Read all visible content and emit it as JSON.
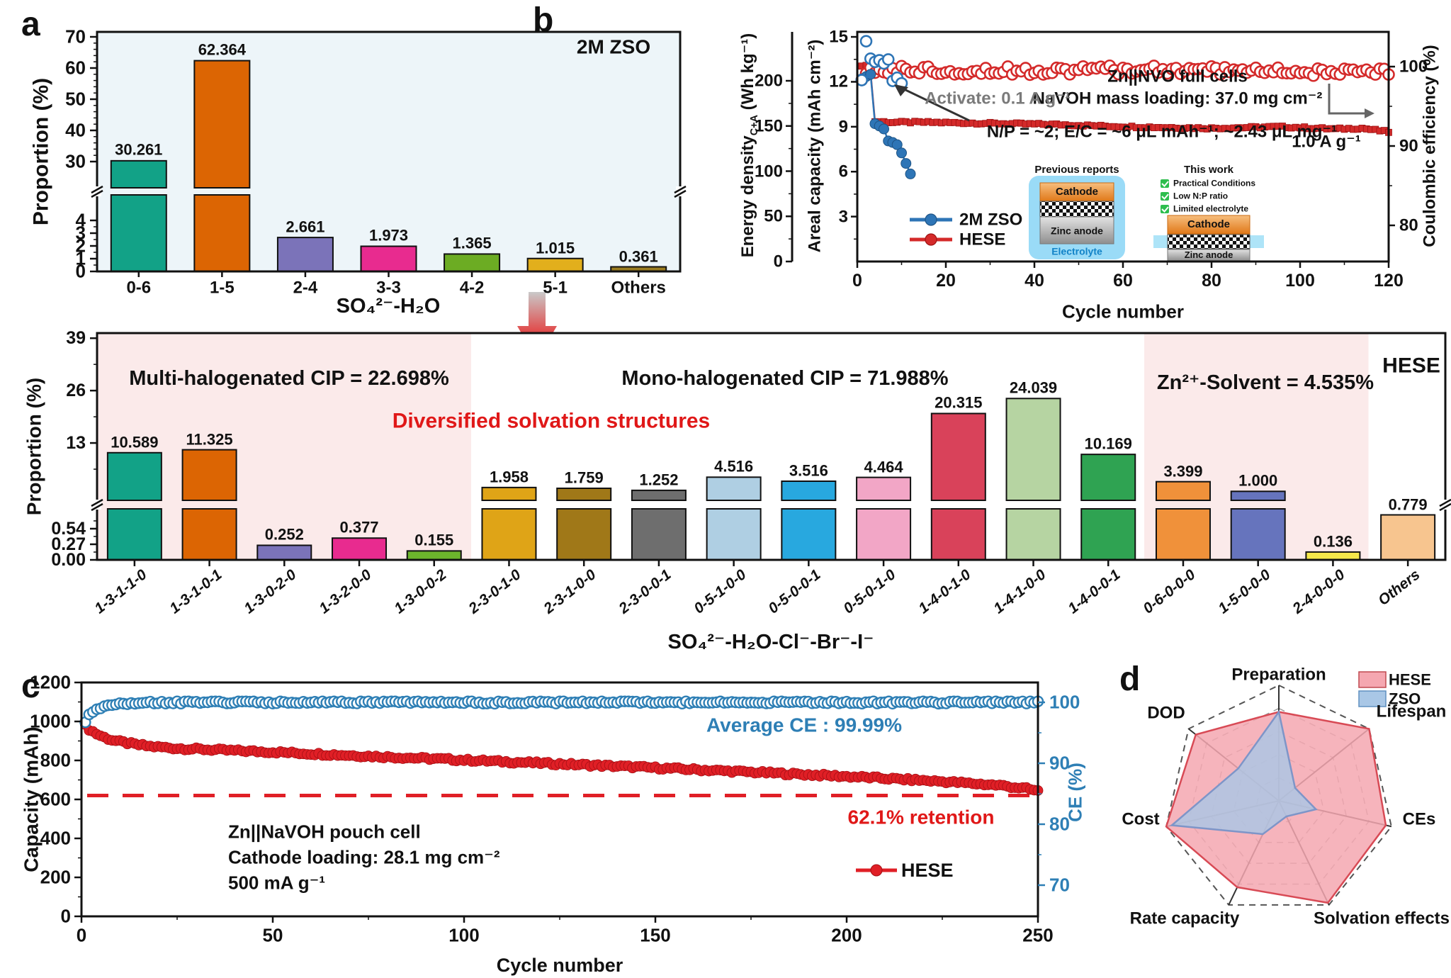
{
  "colors": {
    "accent_red": "#D42A2A",
    "accent_blue": "#2E75B6",
    "panel_a_bg": "#EDF5F9",
    "pink_region": "#FBEAEA",
    "retention_red": "#E01F26",
    "ce_blue": "#2E7FB5",
    "radar_hese_fill": "#F5A7B0",
    "radar_zso_fill": "#A9C7E6"
  },
  "chart_data": [
    {
      "id": "a",
      "type": "bar",
      "panel_label": "a",
      "title": "2M ZSO",
      "xlabel": "SO₄²⁻-H₂O",
      "ylabel": "Proportion (%)",
      "categories": [
        "0-6",
        "1-5",
        "2-4",
        "3-3",
        "4-2",
        "5-1",
        "Others"
      ],
      "values": [
        30.261,
        62.364,
        2.661,
        1.973,
        1.365,
        1.015,
        0.361
      ],
      "value_labels": [
        "30.261",
        "62.364",
        "2.661",
        "1.973",
        "1.365",
        "1.015",
        "0.361"
      ],
      "bar_colors": [
        "#12A287",
        "#DC6503",
        "#7B73B9",
        "#E82B8F",
        "#6CAC23",
        "#E2AF1C",
        "#9A7C20"
      ],
      "axis_break": true,
      "lower_ticks": [
        "0",
        "1",
        "2",
        "3",
        "4"
      ],
      "upper_ticks": [
        "30",
        "40",
        "50",
        "60",
        "70"
      ],
      "ylim_lower": [
        0,
        4.6
      ],
      "ylim_upper": [
        22,
        70
      ],
      "plot_bg": "#EDF5F9"
    },
    {
      "id": "b",
      "type": "line",
      "panel_label": "b",
      "xlabel": "Cycle number",
      "ylabel_energy_prefix": "Energy density",
      "ylabel_energy_sub": "C+A",
      "ylabel_energy_suffix": " (Wh kg⁻¹)",
      "ylabel_capacity": "Areal capacity (mAh cm⁻²)",
      "ylabel_ce": "Coulombic efficiency (%)",
      "x_ticks": [
        "0",
        "20",
        "40",
        "60",
        "80",
        "100",
        "120"
      ],
      "energy_ticks": [
        "0",
        "50",
        "100",
        "150",
        "200"
      ],
      "capacity_ticks": [
        "3",
        "6",
        "9",
        "12",
        "15"
      ],
      "ce_ticks": [
        "80",
        "90",
        "100"
      ],
      "x_range": [
        0,
        120
      ],
      "capacity_range": [
        0,
        15
      ],
      "energy_range": [
        0,
        200
      ],
      "ce_range": [
        80,
        100
      ],
      "annotations": {
        "cells": "Zn||NVO full cells",
        "loading": "NaVOH mass loading: 37.0 mg cm⁻²",
        "activate": "Activate: 0.1 A g⁻¹",
        "np": "N/P = ~2;  E/C = ~6 μL mAh⁻¹; ~2.43 μL mg⁻¹",
        "rate": "1.0 A g⁻¹"
      },
      "legend": [
        {
          "label": "2M ZSO",
          "color": "#2E75B6"
        },
        {
          "label": "HESE",
          "color": "#D42A2A"
        }
      ],
      "inset": {
        "previous_title": "Previous reports",
        "previous_cathode": "Cathode",
        "previous_anode": "Zinc anode",
        "previous_electrolyte": "Electrolyte",
        "thiswork_title": "This work",
        "checks": [
          "Practical Conditions",
          "Low N:P ratio",
          "Limited electrolyte"
        ],
        "thiswork_cathode": "Cathode",
        "thiswork_anode": "Zinc anode"
      },
      "series": [
        {
          "name": "HESE areal capacity",
          "marker": "square-filled",
          "color": "#D42A2A",
          "dense": true,
          "jitter": 0.06,
          "points": [
            [
              1,
              13.0
            ],
            [
              2,
              13.15
            ],
            [
              3,
              12.6
            ],
            [
              4,
              9.35
            ],
            [
              8,
              9.3
            ],
            [
              15,
              9.3
            ],
            [
              25,
              9.25
            ],
            [
              35,
              9.2
            ],
            [
              45,
              9.15
            ],
            [
              55,
              9.05
            ],
            [
              62,
              9.0
            ],
            [
              70,
              8.95
            ],
            [
              80,
              8.9
            ],
            [
              88,
              8.95
            ],
            [
              95,
              9.0
            ],
            [
              100,
              8.95
            ],
            [
              108,
              8.85
            ],
            [
              114,
              8.9
            ],
            [
              120,
              8.65
            ]
          ]
        },
        {
          "name": "HESE CE",
          "marker": "circle-open",
          "color": "#D42A2A",
          "axis": "ce",
          "dense": true,
          "jitter": 0.55,
          "points": [
            [
              1,
              97.8
            ],
            [
              3,
              99.4
            ],
            [
              10,
              99.6
            ],
            [
              30,
              99.5
            ],
            [
              60,
              99.6
            ],
            [
              90,
              99.5
            ],
            [
              110,
              99.2
            ],
            [
              120,
              99.4
            ]
          ]
        },
        {
          "name": "2M ZSO areal capacity",
          "marker": "circle-filled",
          "color": "#2E75B6",
          "line": true,
          "points": [
            [
              1,
              12.2
            ],
            [
              2,
              12.35
            ],
            [
              3,
              12.5
            ],
            [
              4,
              9.2
            ],
            [
              5,
              9.05
            ],
            [
              6,
              8.85
            ],
            [
              7,
              8.05
            ],
            [
              8,
              7.95
            ],
            [
              9,
              7.8
            ],
            [
              10,
              7.25
            ],
            [
              11,
              6.55
            ],
            [
              12,
              5.85
            ]
          ]
        },
        {
          "name": "2M ZSO CE",
          "marker": "circle-open",
          "color": "#2E75B6",
          "axis": "ce",
          "points": [
            [
              1,
              98.3
            ],
            [
              2,
              103.2
            ],
            [
              3,
              101.0
            ],
            [
              4,
              100.6
            ],
            [
              5,
              100.8
            ],
            [
              6,
              100.4
            ],
            [
              7,
              100.9
            ],
            [
              8,
              98.2
            ],
            [
              9,
              98.6
            ],
            [
              10,
              97.9
            ]
          ]
        }
      ]
    },
    {
      "id": "hese",
      "type": "bar",
      "title": "HESE",
      "xlabel": "SO₄²⁻-H₂O-Cl⁻-Br⁻-I⁻",
      "ylabel": "Proportion (%)",
      "categories": [
        "1-3-1-1-0",
        "1-3-1-0-1",
        "1-3-0-2-0",
        "1-3-2-0-0",
        "1-3-0-0-2",
        "2-3-0-1-0",
        "2-3-1-0-0",
        "2-3-0-0-1",
        "0-5-1-0-0",
        "0-5-0-0-1",
        "0-5-0-1-0",
        "1-4-0-1-0",
        "1-4-1-0-0",
        "1-4-0-0-1",
        "0-6-0-0-0",
        "1-5-0-0-0",
        "2-4-0-0-0",
        "Others"
      ],
      "values": [
        10.589,
        11.325,
        0.252,
        0.377,
        0.155,
        1.958,
        1.759,
        1.252,
        4.516,
        3.516,
        4.464,
        20.315,
        24.039,
        10.169,
        3.399,
        1.0,
        0.136,
        0.779
      ],
      "value_labels": [
        "10.589",
        "11.325",
        "0.252",
        "0.377",
        "0.155",
        "1.958",
        "1.759",
        "1.252",
        "4.516",
        "3.516",
        "4.464",
        "20.315",
        "24.039",
        "10.169",
        "3.399",
        "1.000",
        "0.136",
        "0.779"
      ],
      "bar_colors": [
        "#12A287",
        "#DC6503",
        "#7B73B9",
        "#E82B8F",
        "#6CB52C",
        "#DFA417",
        "#A07818",
        "#6E6E6E",
        "#AFCFE3",
        "#28A8DF",
        "#F2A6C6",
        "#D9425A",
        "#B6D4A2",
        "#2FA352",
        "#F0913A",
        "#6674BD",
        "#F6E84A",
        "#F7C58F"
      ],
      "axis_break": true,
      "lower_ticks": [
        "0.00",
        "0.27",
        "0.54"
      ],
      "upper_ticks": [
        "13",
        "26",
        "39"
      ],
      "ylim_lower": [
        0,
        0.883
      ],
      "ylim_upper": [
        0,
        39
      ],
      "regions": [
        {
          "label": "Multi-halogenated CIP = 22.698%",
          "from": 0,
          "to": 4,
          "bg": "#FBEAEA"
        },
        {
          "label": "Mono-halogenated CIP = 71.988%",
          "from": 5,
          "to": 13,
          "bg": null
        },
        {
          "label": "Zn²⁺-Solvent = 4.535%",
          "from": 14,
          "to": 16,
          "bg": "#FBEAEA"
        }
      ],
      "annotation": "Diversified solvation structures"
    },
    {
      "id": "c",
      "type": "line",
      "panel_label": "c",
      "xlabel": "Cycle number",
      "ylabel": "Capacity (mAh)",
      "ylabel_right": "CE (%)",
      "x_ticks": [
        "0",
        "50",
        "100",
        "150",
        "200",
        "250"
      ],
      "y_ticks": [
        "0",
        "200",
        "400",
        "600",
        "800",
        "1000",
        "1200"
      ],
      "ce_ticks": [
        "70",
        "80",
        "90",
        "100"
      ],
      "x_range": [
        0,
        250
      ],
      "y_range": [
        0,
        1200
      ],
      "ce_range": [
        70,
        100
      ],
      "retention_line": {
        "value": 620,
        "label": "62.1% retention",
        "color": "#E01F26",
        "style": "dashed"
      },
      "avg_ce_label": "Average CE : 99.99%",
      "info_lines": [
        "Zn||NaVOH pouch cell",
        "Cathode loading: 28.1 mg cm⁻²",
        "500 mA g⁻¹"
      ],
      "legend": [
        {
          "label": "HESE",
          "color": "#E01F26"
        }
      ],
      "series": [
        {
          "name": "HESE capacity",
          "marker": "circle-filled",
          "color": "#E01F26",
          "dense": true,
          "jitter": 7,
          "points": [
            [
              1,
              978
            ],
            [
              2,
              960
            ],
            [
              4,
              936
            ],
            [
              6,
              918
            ],
            [
              8,
              905
            ],
            [
              10,
              896
            ],
            [
              14,
              882
            ],
            [
              18,
              872
            ],
            [
              25,
              862
            ],
            [
              40,
              850
            ],
            [
              50,
              843
            ],
            [
              75,
              822
            ],
            [
              100,
              802
            ],
            [
              125,
              782
            ],
            [
              150,
              762
            ],
            [
              175,
              740
            ],
            [
              200,
              718
            ],
            [
              225,
              692
            ],
            [
              240,
              672
            ],
            [
              247,
              655
            ],
            [
              250,
              642
            ]
          ]
        },
        {
          "name": "CE",
          "marker": "circle-open",
          "color": "#2E7FB5",
          "axis": "ce",
          "dense": true,
          "jitter": 0.22,
          "points": [
            [
              1,
              96.8
            ],
            [
              2,
              97.8
            ],
            [
              4,
              98.9
            ],
            [
              6,
              99.4
            ],
            [
              9,
              99.8
            ],
            [
              15,
              100.0
            ],
            [
              250,
              99.99
            ]
          ]
        }
      ]
    },
    {
      "id": "d",
      "type": "radar",
      "panel_label": "d",
      "axes": [
        "Preparation",
        "Lifespan",
        "CEs",
        "Solvation effects",
        "Rate capacity",
        "Cost",
        "DOD"
      ],
      "rings": 5,
      "series": [
        {
          "name": "HESE",
          "values": [
            0.77,
            1.0,
            0.95,
            0.98,
            0.83,
            1.0,
            0.92
          ],
          "fill": "#F5A7B0",
          "stroke": "#D84A55"
        },
        {
          "name": "ZSO",
          "values": [
            0.77,
            0.18,
            0.33,
            0.15,
            0.32,
            0.95,
            0.45
          ],
          "fill": "#A9C7E6",
          "stroke": "#7E95C8"
        }
      ]
    }
  ]
}
